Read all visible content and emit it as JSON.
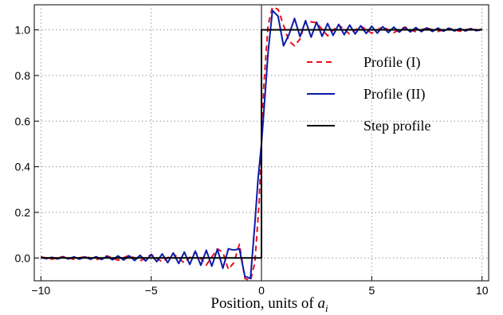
{
  "chart_data": {
    "type": "line",
    "title": "",
    "xlabel": "Position, units of ",
    "xlabel_symbol": "a",
    "xlabel_subscript": "i",
    "ylabel": "",
    "xlim": [
      -10.3,
      10.3
    ],
    "ylim": [
      -0.1,
      1.11
    ],
    "xticks": [
      -10,
      -5,
      0,
      5,
      10
    ],
    "xtick_labels": [
      "−10",
      "−5",
      "0",
      "5",
      "10"
    ],
    "yticks": [
      0.0,
      0.2,
      0.4,
      0.6,
      0.8,
      1.0
    ],
    "ytick_labels": [
      "0.0",
      "0.2",
      "0.4",
      "0.6",
      "0.8",
      "1.0"
    ],
    "grid": true,
    "legend_position": "right-middle",
    "series": [
      {
        "name": "Profile (I)",
        "color": "#e8101a",
        "style": "dashed",
        "x": [
          -10,
          -9.5,
          -9,
          -8.5,
          -8,
          -7.5,
          -7,
          -6.5,
          -6,
          -5.5,
          -5,
          -4.5,
          -4,
          -3.5,
          -3,
          -2.5,
          -2,
          -1.75,
          -1.5,
          -1.25,
          -1,
          -0.75,
          -0.5,
          -0.3,
          -0.1,
          0,
          0.1,
          0.3,
          0.5,
          0.75,
          1,
          1.25,
          1.5,
          1.75,
          2,
          2.5,
          3,
          3.5,
          4,
          4.5,
          5,
          5.5,
          6,
          6.5,
          7,
          7.5,
          8,
          8.5,
          9,
          9.5,
          10
        ],
        "y": [
          0.005,
          -0.005,
          0.006,
          -0.006,
          0.007,
          -0.008,
          0.009,
          -0.01,
          0.012,
          -0.013,
          0.015,
          -0.017,
          0.019,
          -0.022,
          0.026,
          -0.031,
          0.04,
          0.025,
          -0.05,
          -0.02,
          0.06,
          -0.09,
          -0.1,
          -0.02,
          0.25,
          0.5,
          0.75,
          1.02,
          1.1,
          1.09,
          1.02,
          0.95,
          0.93,
          0.96,
          1.04,
          1.031,
          0.974,
          1.022,
          0.981,
          1.017,
          0.985,
          1.013,
          0.988,
          1.012,
          0.991,
          1.009,
          0.993,
          1.007,
          0.994,
          1.006,
          0.995
        ]
      },
      {
        "name": "Profile (II)",
        "color": "#0b1aa8",
        "style": "solid",
        "x": [
          -10,
          -9.75,
          -9.5,
          -9.25,
          -9,
          -8.75,
          -8.5,
          -8.25,
          -8,
          -7.75,
          -7.5,
          -7.25,
          -7,
          -6.75,
          -6.5,
          -6.25,
          -6,
          -5.75,
          -5.5,
          -5.25,
          -5,
          -4.75,
          -4.5,
          -4.25,
          -4,
          -3.75,
          -3.5,
          -3.25,
          -3,
          -2.75,
          -2.5,
          -2.25,
          -2,
          -1.75,
          -1.5,
          -1.25,
          -1,
          -0.75,
          -0.5,
          -0.3,
          -0.15,
          0,
          0.15,
          0.3,
          0.5,
          0.75,
          1,
          1.25,
          1.5,
          1.75,
          2,
          2.25,
          2.5,
          2.75,
          3,
          3.25,
          3.5,
          3.75,
          4,
          4.25,
          4.5,
          4.75,
          5,
          5.25,
          5.5,
          5.75,
          6,
          6.25,
          6.5,
          6.75,
          7,
          7.25,
          7.5,
          7.75,
          8,
          8.25,
          8.5,
          8.75,
          9,
          9.25,
          9.5,
          9.75,
          10
        ],
        "y": [
          0.003,
          -0.003,
          0.003,
          -0.004,
          0.004,
          -0.004,
          0.005,
          -0.005,
          0.005,
          -0.006,
          0.006,
          -0.007,
          0.007,
          -0.008,
          0.009,
          -0.009,
          0.01,
          -0.011,
          0.012,
          -0.013,
          0.015,
          -0.016,
          0.018,
          -0.02,
          0.022,
          -0.024,
          0.026,
          -0.028,
          0.03,
          -0.032,
          0.034,
          -0.036,
          0.038,
          -0.045,
          0.04,
          0.035,
          0.04,
          -0.08,
          -0.09,
          0.15,
          0.35,
          0.5,
          0.7,
          0.9,
          1.085,
          1.06,
          0.93,
          0.98,
          1.05,
          0.97,
          1.04,
          0.968,
          1.034,
          0.972,
          1.028,
          0.976,
          1.024,
          0.979,
          1.021,
          0.982,
          1.018,
          0.984,
          1.016,
          0.986,
          1.014,
          0.988,
          1.012,
          0.99,
          1.011,
          0.991,
          1.01,
          0.992,
          1.009,
          0.993,
          1.008,
          0.994,
          1.007,
          0.995,
          1.006,
          0.995,
          1.005,
          0.996,
          1.004
        ]
      },
      {
        "name": "Step profile",
        "color": "#000000",
        "style": "solid",
        "x": [
          -10,
          0,
          0,
          10
        ],
        "y": [
          0,
          0,
          1,
          1
        ]
      }
    ]
  }
}
